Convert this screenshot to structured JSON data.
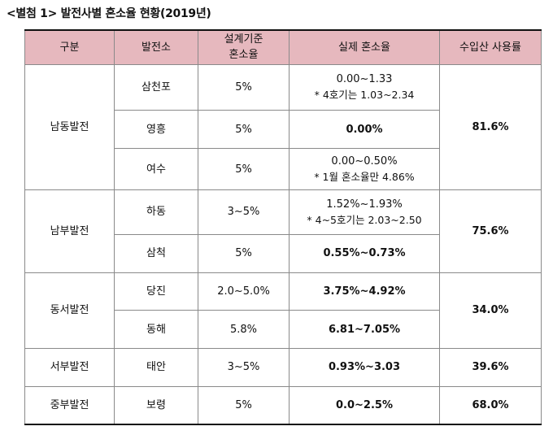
{
  "title": "<별첨 1> 발전사별 혼소율 현황(2019년)",
  "headers": {
    "category": "구분",
    "plant": "발전소",
    "design_rate_line1": "설계기준",
    "design_rate_line2": "혼소율",
    "actual_rate": "실제 혼소율",
    "import_usage": "수입산 사용률"
  },
  "groups": [
    {
      "company": "남동발전",
      "import_usage": "81.6%",
      "plants": [
        {
          "name": "삼천포",
          "design": "5%",
          "actual": "0.00~1.33",
          "note": "* 4호기는 1.03~2.34"
        },
        {
          "name": "영흥",
          "design": "5%",
          "actual": "0.00%",
          "note": ""
        },
        {
          "name": "여수",
          "design": "5%",
          "actual": "0.00~0.50%",
          "note": "* 1월 혼소율만 4.86%"
        }
      ]
    },
    {
      "company": "남부발전",
      "import_usage": "75.6%",
      "plants": [
        {
          "name": "하동",
          "design": "3~5%",
          "actual": "1.52%~1.93%",
          "note": "* 4~5호기는 2.03~2.50"
        },
        {
          "name": "삼척",
          "design": "5%",
          "actual": "0.55%~0.73%",
          "note": ""
        }
      ]
    },
    {
      "company": "동서발전",
      "import_usage": "34.0%",
      "plants": [
        {
          "name": "당진",
          "design": "2.0~5.0%",
          "actual": "3.75%~4.92%",
          "note": ""
        },
        {
          "name": "동해",
          "design": "5.8%",
          "actual": "6.81~7.05%",
          "note": ""
        }
      ]
    },
    {
      "company": "서부발전",
      "import_usage": "39.6%",
      "plants": [
        {
          "name": "태안",
          "design": "3~5%",
          "actual": "0.93%~3.03",
          "note": ""
        }
      ]
    },
    {
      "company": "중부발전",
      "import_usage": "68.0%",
      "plants": [
        {
          "name": "보령",
          "design": "5%",
          "actual": "0.0~2.5%",
          "note": ""
        }
      ]
    }
  ]
}
